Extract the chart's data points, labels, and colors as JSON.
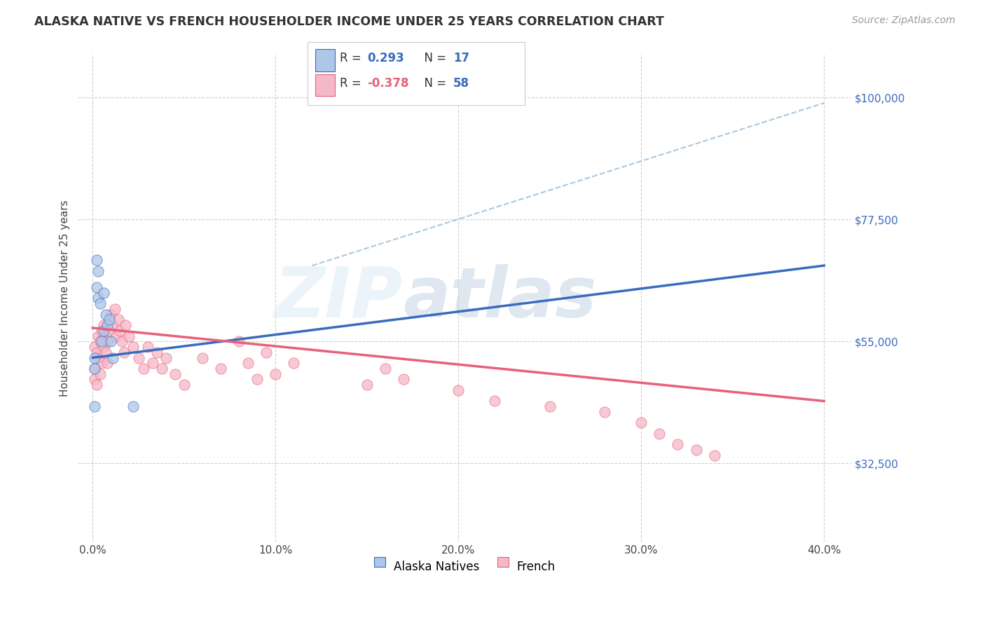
{
  "title": "ALASKA NATIVE VS FRENCH HOUSEHOLDER INCOME UNDER 25 YEARS CORRELATION CHART",
  "source": "Source: ZipAtlas.com",
  "ylabel": "Householder Income Under 25 years",
  "xlabel_ticks": [
    "0.0%",
    "10.0%",
    "20.0%",
    "30.0%",
    "40.0%"
  ],
  "xlabel_vals": [
    0.0,
    0.1,
    0.2,
    0.3,
    0.4
  ],
  "ylabel_ticks": [
    "$32,500",
    "$55,000",
    "$77,500",
    "$100,000"
  ],
  "ylabel_vals": [
    32500,
    55000,
    77500,
    100000
  ],
  "xlim": [
    -0.008,
    0.415
  ],
  "ylim": [
    18000,
    108000
  ],
  "alaska_color": "#aec6e8",
  "french_color": "#f5b8c8",
  "alaska_line_color": "#3a6bbf",
  "french_line_color": "#e8607a",
  "dashed_line_color": "#a8c8de",
  "watermark_zip": "ZIP",
  "watermark_atlas": "atlas",
  "alaska_line_x0": 0.0,
  "alaska_line_y0": 52000,
  "alaska_line_x1": 0.4,
  "alaska_line_y1": 69000,
  "french_line_x0": 0.0,
  "french_line_y0": 57500,
  "french_line_x1": 0.4,
  "french_line_y1": 44000,
  "dashed_line_x0": 0.12,
  "dashed_line_y0": 69000,
  "dashed_line_x1": 0.4,
  "dashed_line_y1": 99000,
  "alaska_x": [
    0.001,
    0.002,
    0.003,
    0.003,
    0.004,
    0.005,
    0.006,
    0.006,
    0.007,
    0.008,
    0.009,
    0.01,
    0.011,
    0.022,
    0.001,
    0.001,
    0.002
  ],
  "alaska_y": [
    52000,
    65000,
    63000,
    68000,
    62000,
    55000,
    57000,
    64000,
    60000,
    58000,
    59000,
    55000,
    52000,
    43000,
    43000,
    50000,
    70000
  ],
  "french_x": [
    0.001,
    0.001,
    0.001,
    0.002,
    0.002,
    0.003,
    0.003,
    0.004,
    0.004,
    0.005,
    0.005,
    0.006,
    0.006,
    0.007,
    0.007,
    0.008,
    0.008,
    0.009,
    0.01,
    0.011,
    0.012,
    0.013,
    0.014,
    0.015,
    0.016,
    0.017,
    0.018,
    0.02,
    0.022,
    0.025,
    0.028,
    0.03,
    0.033,
    0.035,
    0.038,
    0.04,
    0.045,
    0.05,
    0.06,
    0.07,
    0.08,
    0.085,
    0.09,
    0.095,
    0.1,
    0.11,
    0.15,
    0.16,
    0.17,
    0.2,
    0.22,
    0.25,
    0.28,
    0.3,
    0.31,
    0.32,
    0.33,
    0.34
  ],
  "french_y": [
    54000,
    50000,
    48000,
    53000,
    47000,
    56000,
    52000,
    55000,
    49000,
    57000,
    51000,
    54000,
    58000,
    56000,
    53000,
    55000,
    51000,
    57000,
    60000,
    58000,
    61000,
    56000,
    59000,
    57000,
    55000,
    53000,
    58000,
    56000,
    54000,
    52000,
    50000,
    54000,
    51000,
    53000,
    50000,
    52000,
    49000,
    47000,
    52000,
    50000,
    55000,
    51000,
    48000,
    53000,
    49000,
    51000,
    47000,
    50000,
    48000,
    46000,
    44000,
    43000,
    42000,
    40000,
    38000,
    36000,
    35000,
    34000
  ]
}
